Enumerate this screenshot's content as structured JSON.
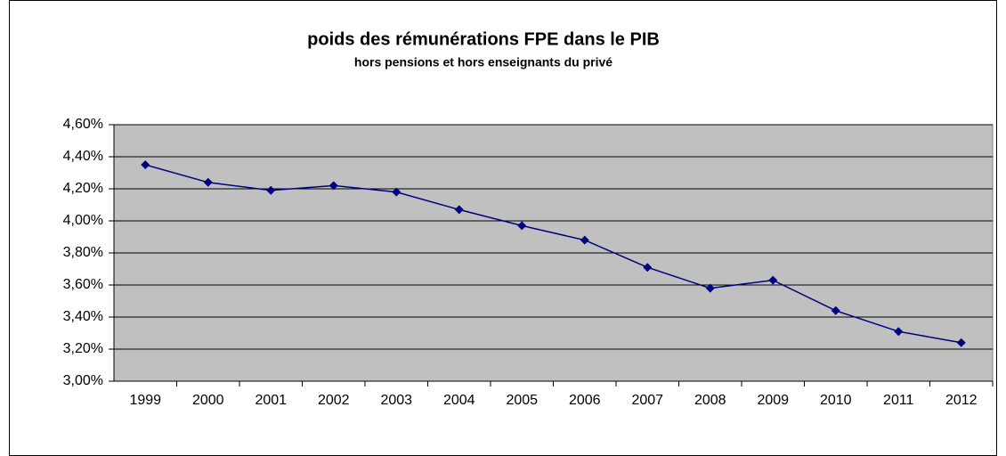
{
  "chart_data": {
    "type": "line",
    "title": "poids des rémunérations FPE dans le PIB",
    "subtitle": "hors pensions et hors enseignants du privé",
    "categories": [
      "1999",
      "2000",
      "2001",
      "2002",
      "2003",
      "2004",
      "2005",
      "2006",
      "2007",
      "2008",
      "2009",
      "2010",
      "2011",
      "2012"
    ],
    "series": [
      {
        "name": "poids des rémunérations FPE dans le PIB",
        "color": "#000080",
        "values": [
          4.35,
          4.24,
          4.19,
          4.22,
          4.18,
          4.07,
          3.97,
          3.88,
          3.71,
          3.58,
          3.63,
          3.44,
          3.31,
          3.24
        ]
      }
    ],
    "ylim": [
      3,
      4.6
    ],
    "yticks": [
      {
        "value": 3,
        "label": "3,00%"
      },
      {
        "value": 3.2,
        "label": "3,20%"
      },
      {
        "value": 3.4,
        "label": "3,40%"
      },
      {
        "value": 3.6,
        "label": "3,60%"
      },
      {
        "value": 3.8,
        "label": "3,80%"
      },
      {
        "value": 4,
        "label": "4,00%"
      },
      {
        "value": 4.2,
        "label": "4,20%"
      },
      {
        "value": 4.4,
        "label": "4,40%"
      },
      {
        "value": 4.6,
        "label": "4,60%"
      }
    ],
    "grid": true,
    "plot_background": "#c0c0c0"
  }
}
